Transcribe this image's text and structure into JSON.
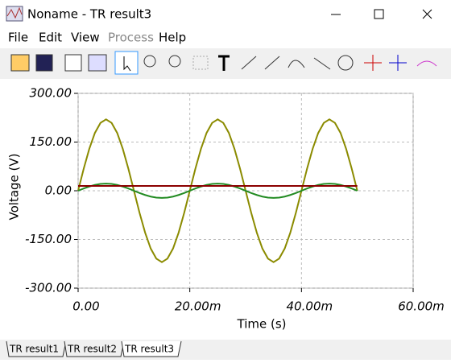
{
  "window": {
    "title": "Noname - TR result3",
    "menu": [
      "File",
      "Edit",
      "View",
      "Process",
      "Help"
    ],
    "tabs": [
      "TR result1",
      "TR result2",
      "TR result3"
    ]
  },
  "chart_data": {
    "type": "line",
    "xlabel": "Time (s)",
    "ylabel": "Voltage (V)",
    "x": [
      0,
      0.001,
      0.002,
      0.003,
      0.004,
      0.005,
      0.006,
      0.007,
      0.008,
      0.009,
      0.01,
      0.011,
      0.012,
      0.013,
      0.014,
      0.015,
      0.016,
      0.017,
      0.018,
      0.019,
      0.02,
      0.021,
      0.022,
      0.023,
      0.024,
      0.025,
      0.026,
      0.027,
      0.028,
      0.029,
      0.03,
      0.031,
      0.032,
      0.033,
      0.034,
      0.035,
      0.036,
      0.037,
      0.038,
      0.039,
      0.04,
      0.041,
      0.042,
      0.043,
      0.044,
      0.045,
      0.046,
      0.047,
      0.048,
      0.049,
      0.05
    ],
    "series": [
      {
        "color": "#8b8b00",
        "values": [
          0,
          68,
          129,
          178,
          209,
          220,
          209,
          178,
          129,
          68,
          0,
          -68,
          -129,
          -178,
          -209,
          -220,
          -209,
          -178,
          -129,
          -68,
          0,
          68,
          129,
          178,
          209,
          220,
          209,
          178,
          129,
          68,
          0,
          -68,
          -129,
          -178,
          -209,
          -220,
          -209,
          -178,
          -129,
          -68,
          0,
          68,
          129,
          178,
          209,
          220,
          209,
          178,
          129,
          68,
          0
        ]
      },
      {
        "color": "#228b22",
        "values": [
          0,
          7,
          13,
          18,
          21,
          22,
          21,
          18,
          13,
          7,
          0,
          -7,
          -13,
          -18,
          -21,
          -22,
          -21,
          -18,
          -13,
          -7,
          0,
          7,
          13,
          18,
          21,
          22,
          21,
          18,
          13,
          7,
          0,
          -7,
          -13,
          -18,
          -21,
          -22,
          -21,
          -18,
          -13,
          -7,
          0,
          7,
          13,
          18,
          21,
          22,
          21,
          18,
          13,
          7,
          0
        ]
      },
      {
        "color": "#8b0000",
        "values": [
          15,
          15,
          15,
          15,
          15,
          15,
          15,
          15,
          15,
          15,
          15,
          15,
          15,
          15,
          15,
          15,
          15,
          15,
          15,
          15,
          15,
          15,
          15,
          15,
          15,
          15,
          15,
          15,
          15,
          15,
          15,
          15,
          15,
          15,
          15,
          15,
          15,
          15,
          15,
          15,
          15,
          15,
          15,
          15,
          15,
          15,
          15,
          15,
          15,
          15,
          15
        ]
      }
    ],
    "xlim": [
      0,
      0.06
    ],
    "xticks": [
      {
        "value": 0,
        "label": "0.00"
      },
      {
        "value": 0.02,
        "label": "20.00m"
      },
      {
        "value": 0.04,
        "label": "40.00m"
      },
      {
        "value": 0.06,
        "label": "60.00m"
      }
    ],
    "ylim": [
      -300,
      300
    ],
    "yticks": [
      {
        "value": -300,
        "label": "-300.00"
      },
      {
        "value": -150,
        "label": "-150.00"
      },
      {
        "value": 0,
        "label": "0.00"
      },
      {
        "value": 150,
        "label": "150.00"
      },
      {
        "value": 300,
        "label": "300.00"
      }
    ],
    "grid": true
  }
}
